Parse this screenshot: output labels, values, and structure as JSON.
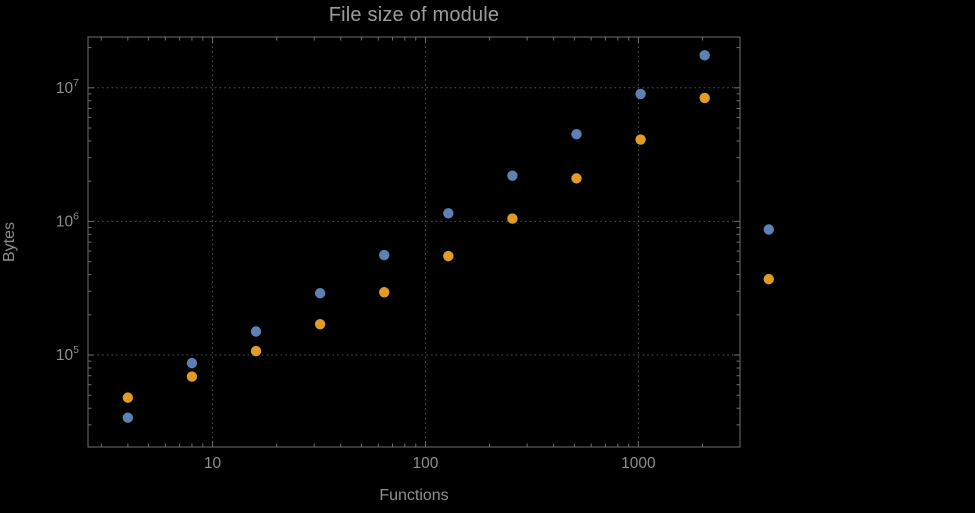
{
  "colors": {
    "background": "#000000",
    "frame": "#6f6f6f",
    "grid": "#555555",
    "tick_label": "#8f8f8f",
    "title": "#9c9c9c",
    "series_blue": "#5e81b5",
    "series_orange": "#e19c24"
  },
  "chart_data": {
    "type": "scatter",
    "title": "File size of module",
    "xlabel": "Functions",
    "ylabel": "Bytes",
    "x_scale": "log",
    "y_scale": "log",
    "x_range": [
      2.6,
      3000
    ],
    "y_range": [
      20500,
      24000000
    ],
    "grid": "dotted lines at decade ticks, frame on all four sides, ticks inward",
    "legend": "none",
    "x_ticks": [
      {
        "value": 10,
        "label": "10"
      },
      {
        "value": 100,
        "label": "100"
      },
      {
        "value": 1000,
        "label": "1000"
      }
    ],
    "y_ticks": [
      {
        "value": 100000,
        "base": "10",
        "exp": "5"
      },
      {
        "value": 1000000,
        "base": "10",
        "exp": "6"
      },
      {
        "value": 10000000,
        "base": "10",
        "exp": "7"
      }
    ],
    "x": [
      4,
      8,
      16,
      32,
      64,
      128,
      256,
      512,
      1024,
      2048,
      4096
    ],
    "series": [
      {
        "name": "series-blue",
        "color": "#5e81b5",
        "values": [
          34000,
          87000,
          150000,
          290000,
          560000,
          1150000,
          2200000,
          4500000,
          9000000,
          17500000,
          870000
        ]
      },
      {
        "name": "series-orange",
        "color": "#e19c24",
        "values": [
          48000,
          69000,
          107000,
          170000,
          295000,
          550000,
          1050000,
          2100000,
          4100000,
          8400000,
          370000
        ]
      }
    ]
  }
}
